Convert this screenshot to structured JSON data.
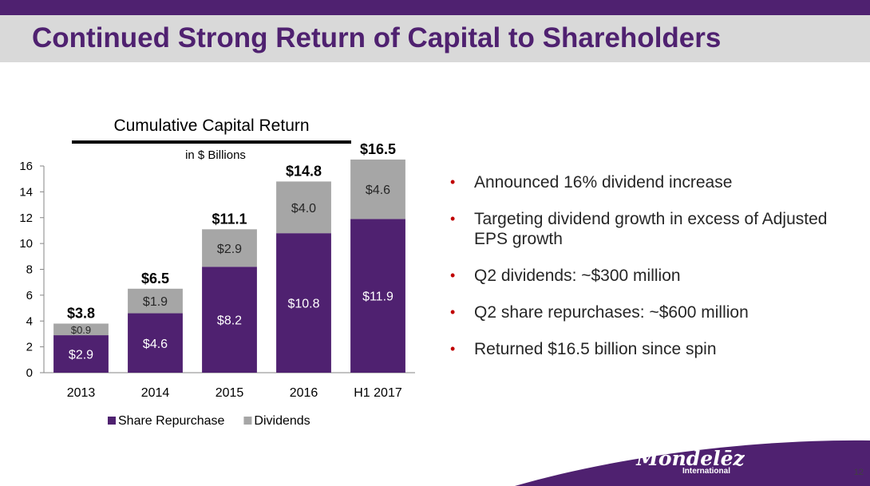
{
  "slide": {
    "title": "Continued Strong Return of Capital to Shareholders",
    "page_number": "12"
  },
  "brand": {
    "name": "Mondelēz",
    "sub": "International"
  },
  "bullets": [
    "Announced 16% dividend increase",
    "Targeting dividend growth in excess of Adjusted EPS growth",
    "Q2 dividends: ~$300 million",
    "Q2 share repurchases: ~$600 million",
    "Returned $16.5 billion since spin"
  ],
  "colors": {
    "accent": "#4f2170",
    "title_band": "#d9d9d9",
    "bullet": "#c00000",
    "repurchase": "#4f2170",
    "dividends": "#a6a6a6"
  },
  "chart_data": {
    "type": "bar",
    "stacked": true,
    "title": "Cumulative Capital Return",
    "subtitle": "in $ Billions",
    "categories": [
      "2013",
      "2014",
      "2015",
      "2016",
      "H1 2017"
    ],
    "series": [
      {
        "name": "Share Repurchase",
        "values": [
          2.9,
          4.6,
          8.2,
          10.8,
          11.9
        ],
        "labels": [
          "$2.9",
          "$4.6",
          "$8.2",
          "$10.8",
          "$11.9"
        ],
        "color": "#4f2170"
      },
      {
        "name": "Dividends",
        "values": [
          0.9,
          1.9,
          2.9,
          4.0,
          4.6
        ],
        "labels": [
          "$0.9",
          "$1.9",
          "$2.9",
          "$4.0",
          "$4.6"
        ],
        "color": "#a6a6a6"
      }
    ],
    "totals": [
      "$3.8",
      "$6.5",
      "$11.1",
      "$14.8",
      "$16.5"
    ],
    "ylim": [
      0,
      16
    ],
    "yticks": [
      0,
      2,
      4,
      6,
      8,
      10,
      12,
      14,
      16
    ],
    "grid": false,
    "legend": "bottom"
  }
}
